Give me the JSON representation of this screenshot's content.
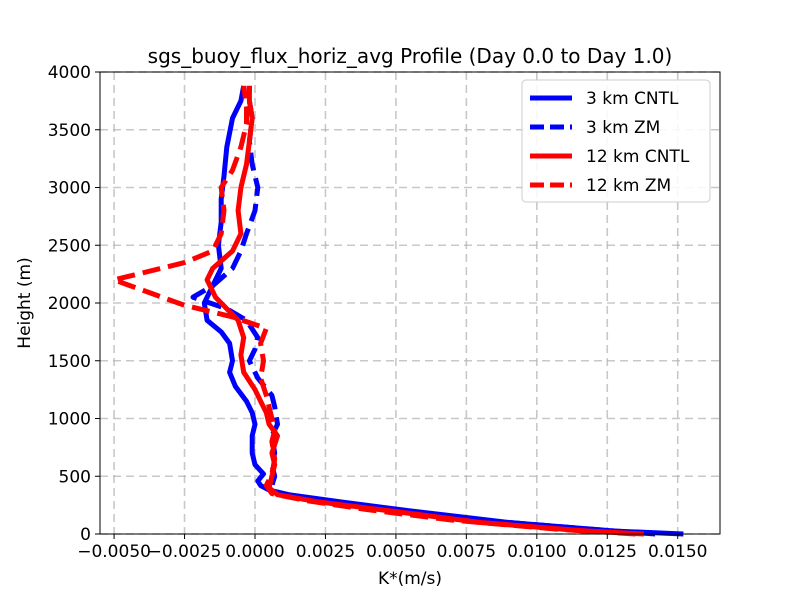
{
  "chart_data": {
    "type": "line",
    "title": "sgs_buoy_flux_horiz_avg Profile (Day 0.0 to Day 1.0)",
    "xlabel": "K*(m/s)",
    "ylabel": "Height (m)",
    "xlim": [
      -0.0055,
      0.0165
    ],
    "ylim": [
      0,
      4000
    ],
    "xticks": [
      -0.005,
      -0.0025,
      0.0,
      0.0025,
      0.005,
      0.0075,
      0.01,
      0.0125,
      0.015
    ],
    "xtick_labels": [
      "−0.0050",
      "−0.0025",
      "0.0000",
      "0.0025",
      "0.0050",
      "0.0075",
      "0.0100",
      "0.0125",
      "0.0150"
    ],
    "yticks": [
      0,
      500,
      1000,
      1500,
      2000,
      2500,
      3000,
      3500,
      4000
    ],
    "ytick_labels": [
      "0",
      "500",
      "1000",
      "1500",
      "2000",
      "2500",
      "3000",
      "3500",
      "4000"
    ],
    "grid": true,
    "legend_position": "top-right",
    "series": [
      {
        "name": "3 km CNTL",
        "color": "#0000ff",
        "style": "solid",
        "points": [
          [
            0.0152,
            0
          ],
          [
            0.0128,
            25
          ],
          [
            0.009,
            100
          ],
          [
            0.0055,
            200
          ],
          [
            0.003,
            280
          ],
          [
            0.0012,
            340
          ],
          [
            0.0005,
            380
          ],
          [
            0.0002,
            420
          ],
          [
            0.0001,
            460
          ],
          [
            0.0003,
            520
          ],
          [
            0.0,
            600
          ],
          [
            -0.0001,
            700
          ],
          [
            -0.0001,
            850
          ],
          [
            0.0,
            950
          ],
          [
            -0.0001,
            1050
          ],
          [
            -0.0003,
            1150
          ],
          [
            -0.0007,
            1280
          ],
          [
            -0.0009,
            1400
          ],
          [
            -0.0008,
            1500
          ],
          [
            -0.0009,
            1650
          ],
          [
            -0.0012,
            1750
          ],
          [
            -0.0017,
            1850
          ],
          [
            -0.0018,
            2000
          ],
          [
            -0.0015,
            2150
          ],
          [
            -0.0012,
            2300
          ],
          [
            -0.0013,
            2500
          ],
          [
            -0.0012,
            2700
          ],
          [
            -0.0012,
            2900
          ],
          [
            -0.0011,
            3100
          ],
          [
            -0.001,
            3350
          ],
          [
            -0.0008,
            3600
          ],
          [
            -0.0005,
            3750
          ],
          [
            -0.0004,
            3880
          ]
        ]
      },
      {
        "name": "3 km ZM",
        "color": "#0000ff",
        "style": "dashed",
        "points": [
          [
            0.0142,
            0
          ],
          [
            0.012,
            40
          ],
          [
            0.008,
            120
          ],
          [
            0.0045,
            220
          ],
          [
            0.002,
            300
          ],
          [
            0.0008,
            360
          ],
          [
            0.0006,
            420
          ],
          [
            0.0007,
            500
          ],
          [
            0.0006,
            600
          ],
          [
            0.0007,
            700
          ],
          [
            0.0006,
            850
          ],
          [
            0.0008,
            950
          ],
          [
            0.0007,
            1100
          ],
          [
            0.0006,
            1200
          ],
          [
            0.0001,
            1350
          ],
          [
            -0.0002,
            1500
          ],
          [
            0.0,
            1600
          ],
          [
            0.0001,
            1700
          ],
          [
            -0.0003,
            1850
          ],
          [
            -0.001,
            1950
          ],
          [
            -0.0022,
            2050
          ],
          [
            -0.0015,
            2150
          ],
          [
            -0.0008,
            2300
          ],
          [
            -0.0005,
            2450
          ],
          [
            -0.0003,
            2600
          ],
          [
            0.0,
            2800
          ],
          [
            0.0001,
            3000
          ],
          [
            -0.0001,
            3200
          ],
          [
            -0.0002,
            3400
          ],
          [
            -0.0001,
            3600
          ],
          [
            -0.0002,
            3750
          ],
          [
            -0.0002,
            3880
          ]
        ]
      },
      {
        "name": "12 km CNTL",
        "color": "#ff0000",
        "style": "solid",
        "points": [
          [
            0.0138,
            0
          ],
          [
            0.0115,
            30
          ],
          [
            0.008,
            100
          ],
          [
            0.0048,
            200
          ],
          [
            0.0022,
            280
          ],
          [
            0.0008,
            340
          ],
          [
            0.0005,
            400
          ],
          [
            0.0006,
            500
          ],
          [
            0.0007,
            600
          ],
          [
            0.0006,
            700
          ],
          [
            0.0008,
            850
          ],
          [
            0.0005,
            950
          ],
          [
            0.0004,
            1050
          ],
          [
            0.0002,
            1150
          ],
          [
            0.0,
            1250
          ],
          [
            -0.0004,
            1400
          ],
          [
            -0.0005,
            1550
          ],
          [
            -0.0004,
            1700
          ],
          [
            -0.0006,
            1850
          ],
          [
            -0.001,
            1950
          ],
          [
            -0.0014,
            2050
          ],
          [
            -0.0017,
            2200
          ],
          [
            -0.0015,
            2300
          ],
          [
            -0.0008,
            2450
          ],
          [
            -0.0005,
            2600
          ],
          [
            -0.0006,
            2800
          ],
          [
            -0.0005,
            3000
          ],
          [
            -0.0003,
            3200
          ],
          [
            -0.0002,
            3400
          ],
          [
            -0.0001,
            3600
          ],
          [
            -0.0002,
            3750
          ],
          [
            -0.0002,
            3880
          ]
        ]
      },
      {
        "name": "12 km ZM",
        "color": "#ff0000",
        "style": "dashed",
        "points": [
          [
            0.0135,
            0
          ],
          [
            0.0108,
            40
          ],
          [
            0.007,
            120
          ],
          [
            0.004,
            210
          ],
          [
            0.0018,
            290
          ],
          [
            0.0006,
            350
          ],
          [
            0.0004,
            420
          ],
          [
            0.0006,
            520
          ],
          [
            0.0007,
            650
          ],
          [
            0.0006,
            800
          ],
          [
            0.0007,
            900
          ],
          [
            0.0006,
            1000
          ],
          [
            0.0005,
            1100
          ],
          [
            0.0004,
            1200
          ],
          [
            0.0002,
            1350
          ],
          [
            0.0003,
            1500
          ],
          [
            0.0002,
            1650
          ],
          [
            0.0004,
            1780
          ],
          [
            -0.0008,
            1880
          ],
          [
            -0.0025,
            1980
          ],
          [
            -0.005,
            2200
          ],
          [
            -0.0025,
            2350
          ],
          [
            -0.0015,
            2450
          ],
          [
            -0.0012,
            2600
          ],
          [
            -0.0011,
            2800
          ],
          [
            -0.0012,
            3000
          ],
          [
            -0.0008,
            3150
          ],
          [
            -0.0005,
            3350
          ],
          [
            -0.0003,
            3550
          ],
          [
            -0.0003,
            3700
          ],
          [
            -0.0004,
            3880
          ]
        ]
      }
    ]
  }
}
